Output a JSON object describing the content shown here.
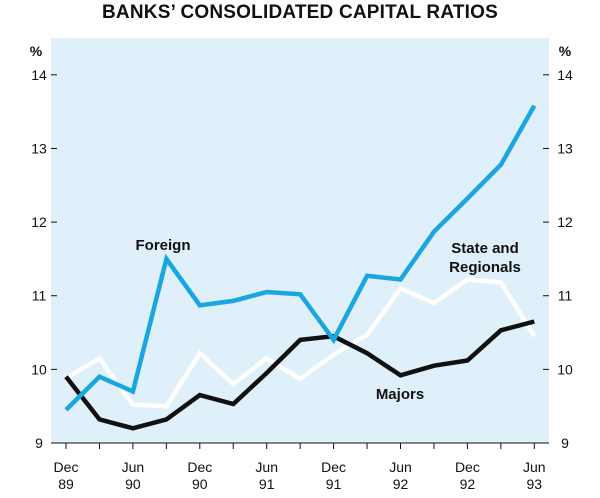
{
  "chart_data": {
    "type": "line",
    "title": "BANKS’ CONSOLIDATED CAPITAL RATIOS",
    "ylabel_left": "%",
    "ylabel_right": "%",
    "ylim": [
      9,
      14.5
    ],
    "yticks": [
      9,
      10,
      11,
      12,
      13,
      14
    ],
    "grid": false,
    "x_ticks": [
      {
        "line1": "Dec",
        "line2": "89"
      },
      {
        "line1": "Jun",
        "line2": "90"
      },
      {
        "line1": "Dec",
        "line2": "90"
      },
      {
        "line1": "Jun",
        "line2": "91"
      },
      {
        "line1": "Dec",
        "line2": "91"
      },
      {
        "line1": "Jun",
        "line2": "92"
      },
      {
        "line1": "Dec",
        "line2": "92"
      },
      {
        "line1": "Jun",
        "line2": "93"
      }
    ],
    "x": [
      "Dec 89",
      "Mar 90",
      "Jun 90",
      "Sep 90",
      "Dec 90",
      "Mar 91",
      "Jun 91",
      "Sep 91",
      "Dec 91",
      "Mar 92",
      "Jun 92",
      "Sep 92",
      "Dec 92",
      "Mar 93",
      "Jun 93"
    ],
    "series": [
      {
        "name": "Foreign",
        "label": "Foreign",
        "color": "#1aa6e0",
        "values": [
          9.45,
          9.9,
          9.7,
          11.5,
          10.87,
          10.93,
          11.05,
          11.02,
          10.4,
          11.27,
          11.22,
          11.87,
          12.32,
          12.78,
          13.58
        ]
      },
      {
        "name": "State and Regionals",
        "label_line1": "State and",
        "label_line2": "Regionals",
        "color": "#ffffff",
        "values": [
          9.88,
          10.15,
          9.52,
          9.5,
          10.22,
          9.8,
          10.15,
          9.87,
          10.2,
          10.47,
          11.1,
          10.9,
          11.22,
          11.18,
          10.45
        ]
      },
      {
        "name": "Majors",
        "label": "Majors",
        "color": "#111111",
        "values": [
          9.9,
          9.32,
          9.2,
          9.32,
          9.65,
          9.53,
          9.95,
          10.4,
          10.45,
          10.22,
          9.92,
          10.05,
          10.12,
          10.53,
          10.65
        ]
      }
    ],
    "background": "#dff0fa"
  }
}
